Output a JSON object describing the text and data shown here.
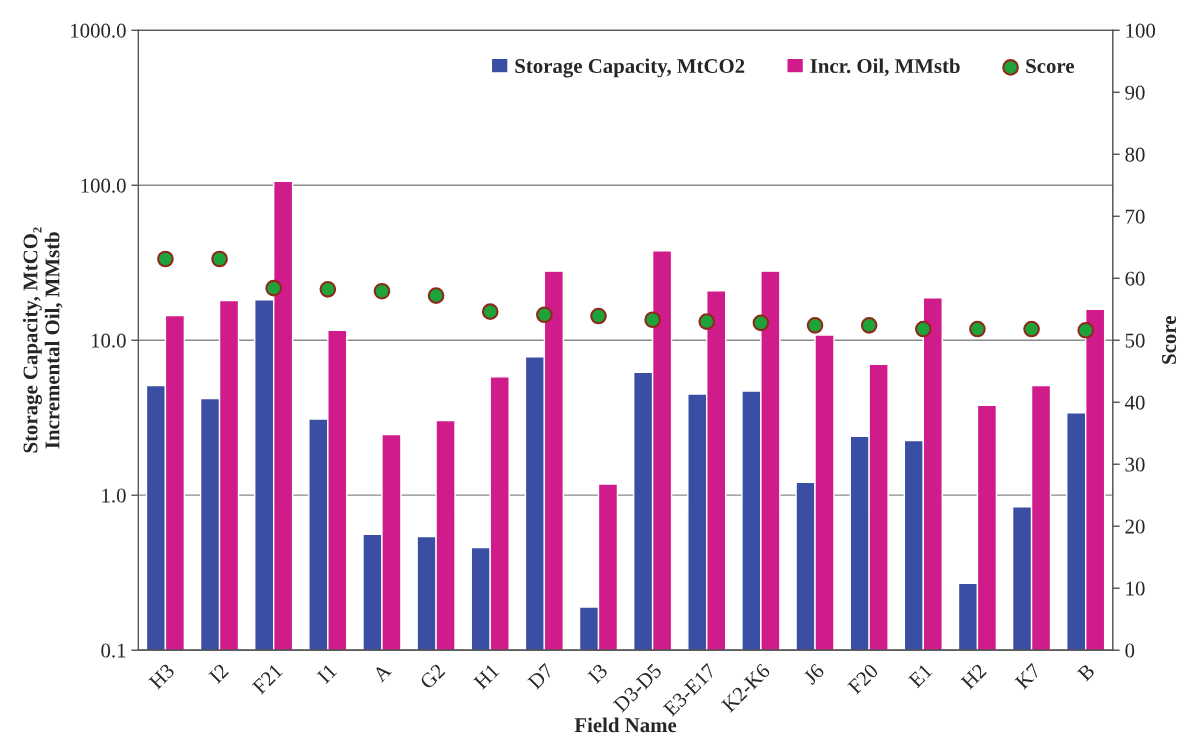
{
  "chart_data": {
    "type": "bar",
    "xlabel": "Field Name",
    "ylabel": "Storage Capacity, MtCO₂\nIncremental Oil, MMstb",
    "y2label": "Score",
    "categories": [
      "H3",
      "I2",
      "F21",
      "I1",
      "A",
      "G2",
      "H1",
      "D7",
      "I3",
      "D3-D5",
      "E3-E17",
      "K2-K6",
      "J6",
      "F20",
      "E1",
      "H2",
      "K7",
      "B"
    ],
    "series": [
      {
        "name": "Storage Capacity, MtCO2",
        "color": "#3a4fa3",
        "values": [
          5.1,
          4.2,
          18.2,
          3.1,
          0.56,
          0.54,
          0.46,
          7.8,
          0.19,
          6.2,
          4.5,
          4.7,
          1.21,
          2.4,
          2.25,
          0.27,
          0.84,
          3.4
        ]
      },
      {
        "name": "Incr. Oil, MMstb",
        "color": "#d01c8b",
        "values": [
          14.4,
          18.0,
          106,
          11.6,
          2.46,
          3.03,
          5.8,
          27.9,
          1.18,
          37.7,
          20.8,
          27.9,
          10.8,
          7.0,
          18.8,
          3.8,
          5.1,
          15.8
        ]
      },
      {
        "name": "Score",
        "type": "scatter",
        "axis": "y2",
        "color": "#1fa23a",
        "marker": "circle",
        "values": [
          63.1,
          63.1,
          58.4,
          58.2,
          57.9,
          57.2,
          54.6,
          54.1,
          53.9,
          53.3,
          53.0,
          52.8,
          52.4,
          52.4,
          51.8,
          51.8,
          51.8,
          51.6
        ]
      }
    ],
    "log": "y",
    "ylim": [
      0.1,
      1000
    ],
    "yticks": [
      {
        "value": 0.1,
        "label": "0.1"
      },
      {
        "value": 1,
        "label": "1.0"
      },
      {
        "value": 10,
        "label": "10.0"
      },
      {
        "value": 100,
        "label": "100.0"
      },
      {
        "value": 1000,
        "label": "1000.0"
      }
    ],
    "y2lim": [
      0,
      100
    ],
    "y2ticks": [
      0,
      10,
      20,
      30,
      40,
      50,
      60,
      70,
      80,
      90,
      100
    ],
    "grid": "y",
    "legend": "top right"
  }
}
